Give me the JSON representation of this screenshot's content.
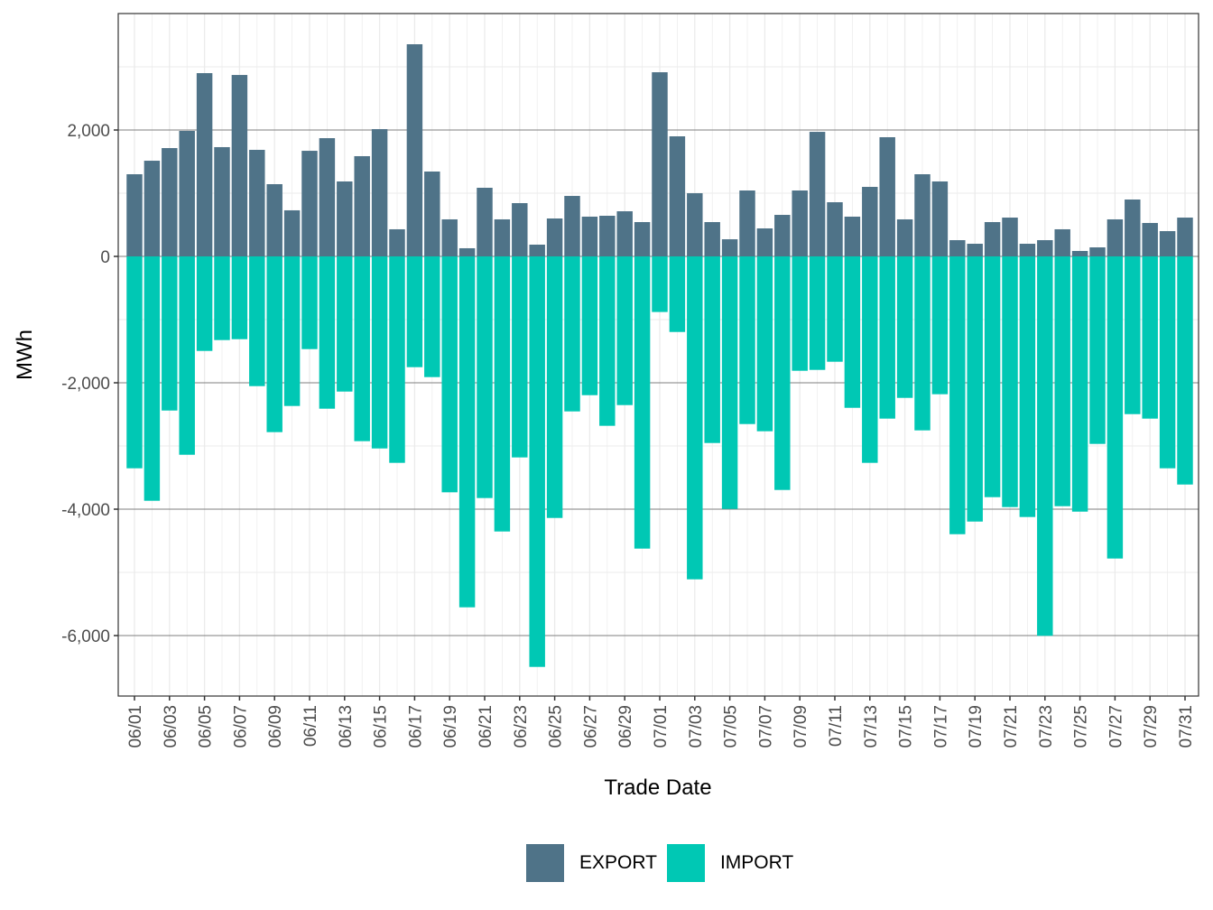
{
  "chart_data": {
    "type": "bar",
    "stacked": true,
    "title": "",
    "xlabel": "Trade Date",
    "ylabel": "MWh",
    "ylim": [
      -6957,
      3843
    ],
    "yticks": [
      -6000,
      -4000,
      -2000,
      0,
      2000
    ],
    "ytick_labels": [
      "-6,000",
      "-4,000",
      "-2,000",
      "0",
      "2,000"
    ],
    "grid": true,
    "legend_position": "bottom",
    "categories": [
      "06/01",
      "06/02",
      "06/03",
      "06/04",
      "06/05",
      "06/06",
      "06/07",
      "06/08",
      "06/09",
      "06/10",
      "06/11",
      "06/12",
      "06/13",
      "06/14",
      "06/15",
      "06/16",
      "06/17",
      "06/18",
      "06/19",
      "06/20",
      "06/21",
      "06/22",
      "06/23",
      "06/24",
      "06/25",
      "06/26",
      "06/27",
      "06/28",
      "06/29",
      "06/30",
      "07/01",
      "07/02",
      "07/03",
      "07/04",
      "07/05",
      "07/06",
      "07/07",
      "07/08",
      "07/09",
      "07/10",
      "07/11",
      "07/12",
      "07/13",
      "07/14",
      "07/15",
      "07/16",
      "07/17",
      "07/18",
      "07/19",
      "07/20",
      "07/21",
      "07/22",
      "07/23",
      "07/24",
      "07/25",
      "07/26",
      "07/27",
      "07/28",
      "07/29",
      "07/30",
      "07/31"
    ],
    "xtick_labels": [
      "06/01",
      "06/03",
      "06/05",
      "06/07",
      "06/09",
      "06/11",
      "06/13",
      "06/15",
      "06/17",
      "06/19",
      "06/21",
      "06/23",
      "06/25",
      "06/27",
      "06/29",
      "07/01",
      "07/03",
      "07/05",
      "07/07",
      "07/09",
      "07/11",
      "07/13",
      "07/15",
      "07/17",
      "07/19",
      "07/21",
      "07/23",
      "07/25",
      "07/27",
      "07/29",
      "07/31"
    ],
    "series": [
      {
        "name": "EXPORT",
        "color": "#4F7388",
        "values": [
          1300,
          1514,
          1714,
          1986,
          2900,
          1729,
          2871,
          1686,
          1143,
          729,
          1671,
          1871,
          1186,
          1586,
          2014,
          429,
          3357,
          1343,
          586,
          129,
          1086,
          586,
          843,
          186,
          600,
          957,
          629,
          643,
          714,
          543,
          2914,
          1900,
          1000,
          543,
          271,
          1043,
          443,
          657,
          1043,
          1971,
          857,
          629,
          1100,
          1886,
          586,
          1300,
          1186,
          257,
          200,
          543,
          614,
          200,
          257,
          429,
          86,
          143,
          586,
          900,
          529,
          400,
          614
        ]
      },
      {
        "name": "IMPORT",
        "color": "#00C8B4",
        "values": [
          -3353,
          -3867,
          -2439,
          -3139,
          -1496,
          -1324,
          -1310,
          -2053,
          -2781,
          -2367,
          -1467,
          -2410,
          -2139,
          -2924,
          -3039,
          -3267,
          -1753,
          -1910,
          -3733,
          -5553,
          -3824,
          -4353,
          -3181,
          -6496,
          -4139,
          -2453,
          -2196,
          -2681,
          -2353,
          -4624,
          -880,
          -1196,
          -5110,
          -2953,
          -3996,
          -2653,
          -2767,
          -3696,
          -1810,
          -1796,
          -1667,
          -2396,
          -3267,
          -2567,
          -2239,
          -2753,
          -2181,
          -4396,
          -4196,
          -3810,
          -3967,
          -4124,
          -6004,
          -3953,
          -4039,
          -2967,
          -4781,
          -2496,
          -2567,
          -3353,
          -3610
        ]
      }
    ]
  }
}
